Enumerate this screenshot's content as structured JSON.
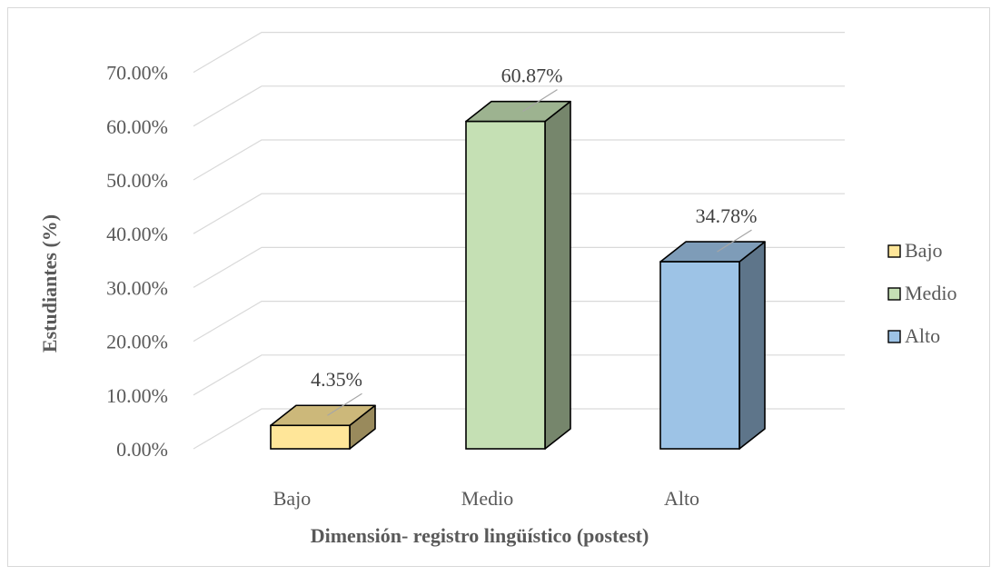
{
  "chart_data": {
    "type": "bar",
    "categories": [
      "Bajo",
      "Medio",
      "Alto"
    ],
    "values": [
      4.35,
      60.87,
      34.78
    ],
    "data_labels": [
      "4.35%",
      "60.87%",
      "34.78%"
    ],
    "ylabel": "Estudiantes (%)",
    "xlabel": "Dimensión- registro lingüístico (postest)",
    "ylim": [
      0,
      70
    ],
    "yticks": [
      "0.00%",
      "10.00%",
      "20.00%",
      "30.00%",
      "40.00%",
      "50.00%",
      "60.00%",
      "70.00%"
    ],
    "grid": true,
    "legend": {
      "placement": "right",
      "entries": [
        "Bajo",
        "Medio",
        "Alto"
      ]
    },
    "colors": {
      "front": [
        "#ffe699",
        "#c5e0b4",
        "#9dc3e6"
      ],
      "side": [
        "#998a5c",
        "#76866c",
        "#5e758a"
      ],
      "top": [
        "#ccb87a",
        "#9db390",
        "#7e9cb8"
      ],
      "grid": "#d9d9d9"
    }
  }
}
